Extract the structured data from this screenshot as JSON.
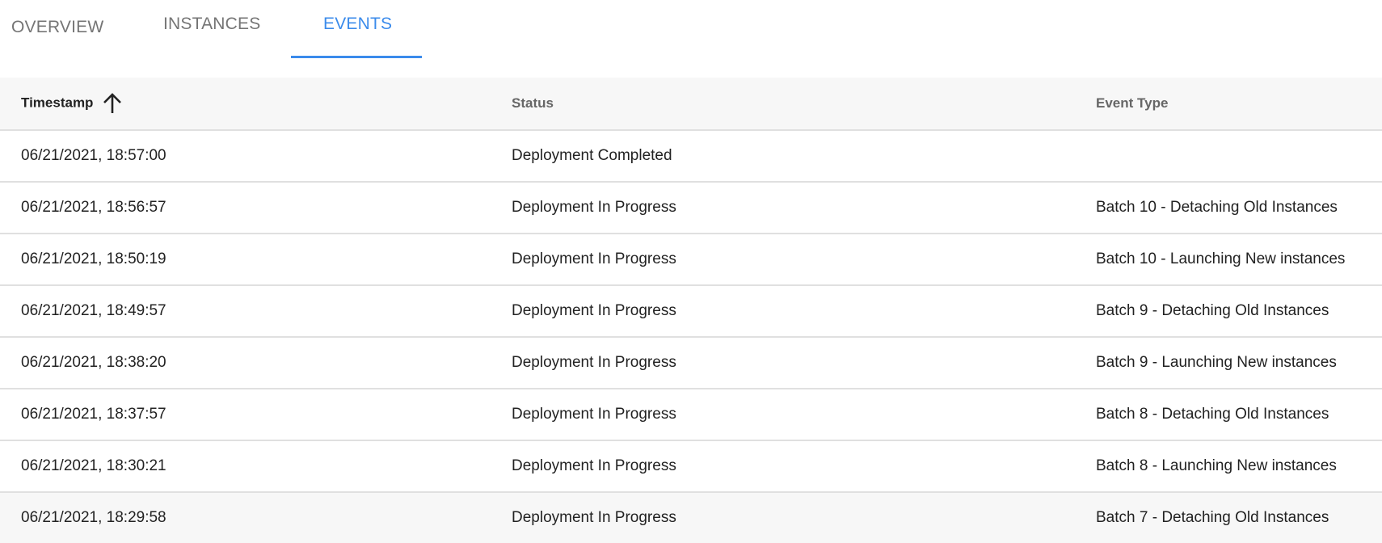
{
  "tabs": [
    {
      "label": "OVERVIEW"
    },
    {
      "label": "INSTANCES"
    },
    {
      "label": "EVENTS",
      "active": true
    }
  ],
  "accent_color": "#3b8beb",
  "table": {
    "columns": [
      {
        "label": "Timestamp",
        "sort": "ascending",
        "sort_icon": "arrow-up-icon"
      },
      {
        "label": "Status"
      },
      {
        "label": "Event Type"
      }
    ],
    "rows": [
      {
        "timestamp": "06/21/2021, 18:57:00",
        "status": "Deployment Completed",
        "event_type": ""
      },
      {
        "timestamp": "06/21/2021, 18:56:57",
        "status": "Deployment In Progress",
        "event_type": "Batch 10 - Detaching Old Instances"
      },
      {
        "timestamp": "06/21/2021, 18:50:19",
        "status": "Deployment In Progress",
        "event_type": "Batch 10 - Launching New instances"
      },
      {
        "timestamp": "06/21/2021, 18:49:57",
        "status": "Deployment In Progress",
        "event_type": "Batch 9 - Detaching Old Instances"
      },
      {
        "timestamp": "06/21/2021, 18:38:20",
        "status": "Deployment In Progress",
        "event_type": "Batch 9 - Launching New instances"
      },
      {
        "timestamp": "06/21/2021, 18:37:57",
        "status": "Deployment In Progress",
        "event_type": "Batch 8 - Detaching Old Instances"
      },
      {
        "timestamp": "06/21/2021, 18:30:21",
        "status": "Deployment In Progress",
        "event_type": "Batch 8 - Launching New instances"
      },
      {
        "timestamp": "06/21/2021, 18:29:58",
        "status": "Deployment In Progress",
        "event_type": "Batch 7 - Detaching Old Instances"
      }
    ]
  }
}
